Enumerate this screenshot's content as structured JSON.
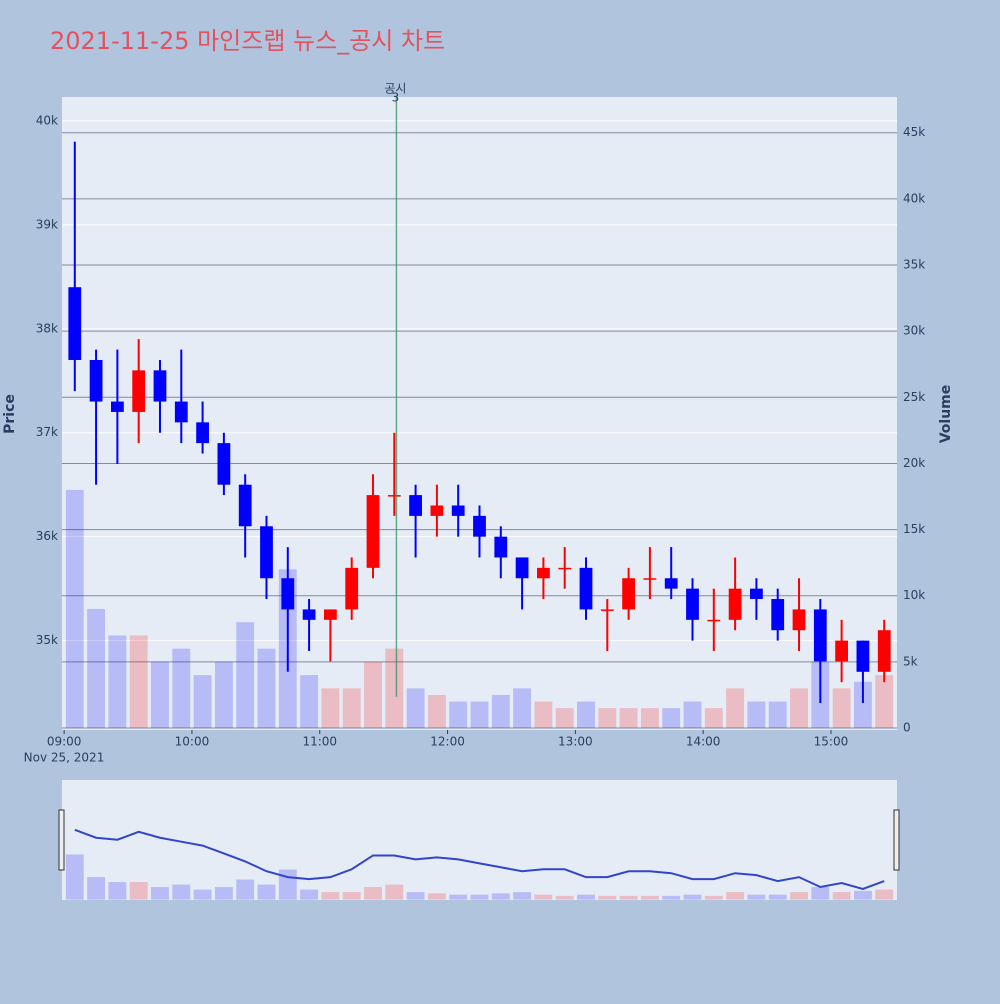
{
  "chart_data": {
    "type": "candlestick",
    "title": "2021-11-25 마인즈랩 뉴스_공시 차트",
    "y_title": "Price",
    "y2_title": "Volume",
    "x_date_label": "Nov 25, 2021",
    "increasing_color": "#ff0000",
    "decreasing_color": "#0000ff",
    "x": [
      "09:00",
      "09:10",
      "09:20",
      "09:30",
      "09:40",
      "09:50",
      "10:00",
      "10:10",
      "10:20",
      "10:30",
      "10:40",
      "10:50",
      "11:00",
      "11:10",
      "11:20",
      "11:30",
      "11:40",
      "11:50",
      "12:00",
      "12:10",
      "12:20",
      "12:30",
      "12:40",
      "12:50",
      "13:00",
      "13:10",
      "13:20",
      "13:30",
      "13:40",
      "13:50",
      "14:00",
      "14:10",
      "14:20",
      "14:30",
      "14:40",
      "14:50",
      "15:00",
      "15:10",
      "15:20"
    ],
    "open": [
      38400,
      37700,
      37300,
      37200,
      37600,
      37300,
      37100,
      36900,
      36500,
      36100,
      35600,
      35300,
      35200,
      35300,
      35700,
      36400,
      36400,
      36200,
      36300,
      36200,
      36000,
      35800,
      35600,
      35700,
      35700,
      35300,
      35300,
      35600,
      35600,
      35500,
      35200,
      35200,
      35500,
      35400,
      35100,
      35300,
      34800,
      35000,
      34700
    ],
    "high": [
      39800,
      37800,
      37800,
      37900,
      37700,
      37800,
      37300,
      37000,
      36600,
      36200,
      35900,
      35400,
      35300,
      35800,
      36600,
      37000,
      36500,
      36500,
      36500,
      36300,
      36100,
      35800,
      35800,
      35900,
      35800,
      35400,
      35700,
      35900,
      35900,
      35600,
      35500,
      35800,
      35600,
      35500,
      35600,
      35400,
      35200,
      35000,
      35200
    ],
    "low": [
      37400,
      36500,
      36700,
      36900,
      37000,
      36900,
      36800,
      36400,
      35800,
      35400,
      34700,
      34900,
      34800,
      35200,
      35600,
      36200,
      35800,
      36000,
      36000,
      35800,
      35600,
      35300,
      35400,
      35500,
      35200,
      34900,
      35200,
      35400,
      35400,
      35000,
      34900,
      35100,
      35200,
      35000,
      34900,
      34400,
      34600,
      34400,
      34600
    ],
    "close": [
      37700,
      37300,
      37200,
      37600,
      37300,
      37100,
      36900,
      36500,
      36100,
      35600,
      35300,
      35200,
      35300,
      35700,
      36400,
      36400,
      36200,
      36300,
      36200,
      36000,
      35800,
      35600,
      35700,
      35700,
      35300,
      35300,
      35600,
      35600,
      35500,
      35200,
      35200,
      35500,
      35400,
      35100,
      35300,
      34800,
      35000,
      34700,
      35100
    ],
    "volume": [
      18000,
      9000,
      7000,
      7000,
      5000,
      6000,
      4000,
      5000,
      8000,
      6000,
      12000,
      4000,
      3000,
      3000,
      5000,
      6000,
      3000,
      2500,
      2000,
      2000,
      2500,
      3000,
      2000,
      1500,
      2000,
      1500,
      1500,
      1500,
      1500,
      2000,
      1500,
      3000,
      2000,
      2000,
      3000,
      5000,
      3000,
      3500,
      4000
    ],
    "xlim": [
      "08:59",
      "15:31"
    ],
    "xticks": [
      "09:00",
      "10:00",
      "11:00",
      "12:00",
      "13:00",
      "14:00",
      "15:00"
    ],
    "ylim": [
      34140,
      40230
    ],
    "yticks": [
      {
        "value": 35000,
        "label": "35k"
      },
      {
        "value": 36000,
        "label": "36k"
      },
      {
        "value": 37000,
        "label": "37k"
      },
      {
        "value": 38000,
        "label": "38k"
      },
      {
        "value": 39000,
        "label": "39k"
      },
      {
        "value": 40000,
        "label": "40k"
      }
    ],
    "y2lim": [
      -150,
      47700
    ],
    "y2ticks": [
      0,
      {
        "value": 5000,
        "label": "5k"
      },
      {
        "value": 10000,
        "label": "10k"
      },
      {
        "value": 15000,
        "label": "15k"
      },
      {
        "value": 20000,
        "label": "20k"
      },
      {
        "value": 25000,
        "label": "25k"
      },
      {
        "value": 30000,
        "label": "30k"
      },
      {
        "value": 35000,
        "label": "35k"
      },
      {
        "value": 40000,
        "label": "40k"
      },
      {
        "value": 45000,
        "label": "45k"
      }
    ],
    "annotation": {
      "x": "11:36",
      "label": "공시",
      "text": "3",
      "y_range": [
        34460,
        40230
      ]
    },
    "range_slider": true
  }
}
